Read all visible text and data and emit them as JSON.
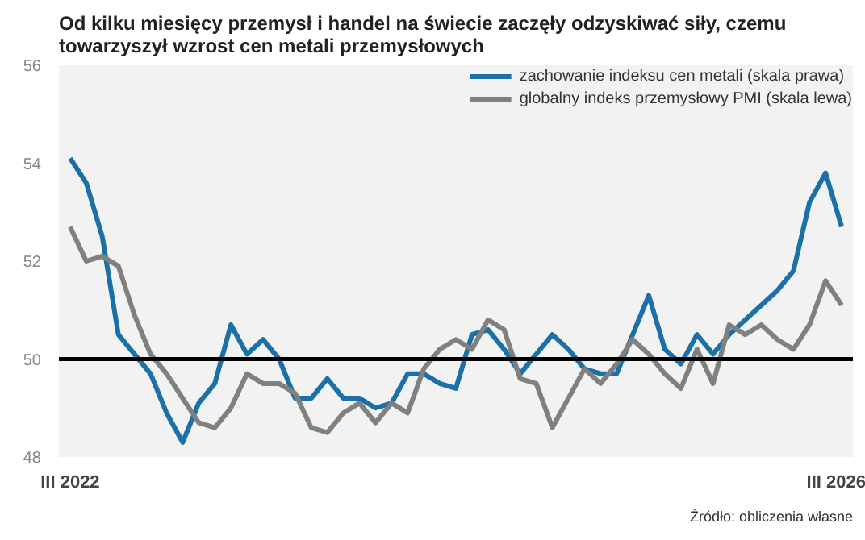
{
  "chart_data": {
    "type": "line",
    "title": "Od kilku miesięcy przemysł i handel na świecie zaczęły odzyskiwać siły, czemu towarzyszył wzrost cen metali przemysłowych",
    "categories": [
      "III 2022",
      null,
      null,
      null,
      null,
      null,
      null,
      null,
      null,
      null,
      null,
      null,
      null,
      null,
      null,
      null,
      null,
      null,
      null,
      null,
      null,
      null,
      null,
      null,
      null,
      null,
      null,
      null,
      null,
      null,
      null,
      null,
      null,
      null,
      null,
      null,
      null,
      null,
      null,
      null,
      null,
      null,
      null,
      null,
      null,
      null,
      null,
      null,
      "III 2026"
    ],
    "series": [
      {
        "name": "zachowanie indeksu cen metali (skala prawa)",
        "color": "#1b70a8",
        "values": [
          54.1,
          53.6,
          52.5,
          50.5,
          50.1,
          49.7,
          48.9,
          48.3,
          49.1,
          49.5,
          50.7,
          50.1,
          50.4,
          50.0,
          49.2,
          49.2,
          49.6,
          49.2,
          49.2,
          49.0,
          49.1,
          49.7,
          49.7,
          49.5,
          49.4,
          50.5,
          50.6,
          50.2,
          49.7,
          50.1,
          50.5,
          50.2,
          49.8,
          49.7,
          49.7,
          50.5,
          51.3,
          50.2,
          49.9,
          50.5,
          50.1,
          50.5,
          50.8,
          51.1,
          51.4,
          51.8,
          53.2,
          53.8,
          52.7
        ]
      },
      {
        "name": "globalny indeks przemysłowy PMI (skala lewa)",
        "color": "#808080",
        "values": [
          52.7,
          52.0,
          52.1,
          51.9,
          50.9,
          50.1,
          49.7,
          49.2,
          48.7,
          48.6,
          49.0,
          49.7,
          49.5,
          49.5,
          49.3,
          48.6,
          48.5,
          48.9,
          49.1,
          48.7,
          49.1,
          48.9,
          49.8,
          50.2,
          50.4,
          50.2,
          50.8,
          50.6,
          49.6,
          49.5,
          48.6,
          49.2,
          49.8,
          49.5,
          49.9,
          50.4,
          50.1,
          49.7,
          49.4,
          50.2,
          49.5,
          50.7,
          50.5,
          50.7,
          50.4,
          50.2,
          50.7,
          51.6,
          51.1
        ]
      }
    ],
    "ylim": [
      48,
      56
    ],
    "yticks": [
      48,
      50,
      52,
      54,
      56
    ],
    "ref_lines": [
      {
        "axis": "y",
        "value": 50,
        "color": "#000000"
      }
    ],
    "grid": false,
    "legend": "top right",
    "marker": "none",
    "line_style": "solid",
    "annotations": [
      "Źródło: obliczenia własne"
    ]
  }
}
